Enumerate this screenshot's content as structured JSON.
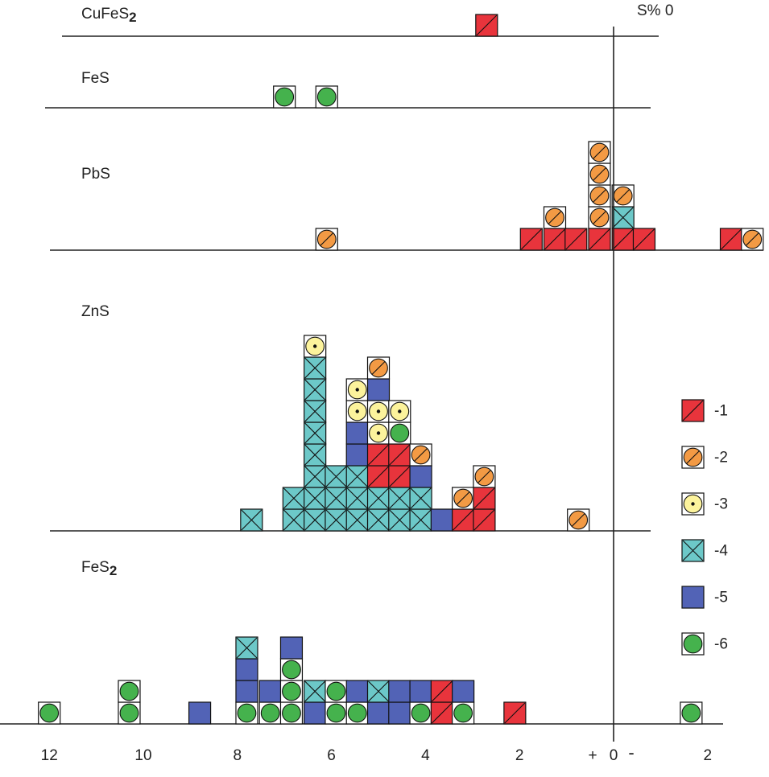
{
  "chart_data": {
    "type": "histogram-stacked",
    "x_axis": {
      "ticks": [
        {
          "value": 12,
          "label": "12"
        },
        {
          "value": 10,
          "label": "10"
        },
        {
          "value": 8,
          "label": "8"
        },
        {
          "value": 6,
          "label": "6"
        },
        {
          "value": 4,
          "label": "4"
        },
        {
          "value": 2,
          "label": "2"
        },
        {
          "value": -2,
          "label": "2"
        }
      ],
      "zero_label": "0",
      "plus_label": "+",
      "minus_label": "-",
      "axis_title": "S% 0"
    },
    "legend": [
      {
        "code": 1,
        "label": "-1",
        "symbol": "square-slash",
        "color": "#e8343c"
      },
      {
        "code": 2,
        "label": "-2",
        "symbol": "circle-slash",
        "color": "#f39a44"
      },
      {
        "code": 3,
        "label": "-3",
        "symbol": "circle-dot",
        "color": "#fcf39c"
      },
      {
        "code": 4,
        "label": "-4",
        "symbol": "square-cross",
        "color": "#6cc8c8"
      },
      {
        "code": 5,
        "label": "-5",
        "symbol": "square",
        "color": "#5263b6"
      },
      {
        "code": 6,
        "label": "-6",
        "symbol": "circle",
        "color": "#45b24d"
      }
    ],
    "panels": [
      {
        "mineral": "CuFeS",
        "subscript": "2",
        "stacks": [
          {
            "x": 2.7,
            "items": [
              1
            ]
          }
        ]
      },
      {
        "mineral": "FeS",
        "subscript": "",
        "stacks": [
          {
            "x": 7.0,
            "items": [
              6
            ]
          },
          {
            "x": 6.1,
            "items": [
              6
            ]
          }
        ]
      },
      {
        "mineral": "PbS",
        "subscript": "",
        "stacks": [
          {
            "x": 6.1,
            "items": [
              2
            ]
          },
          {
            "x": 1.75,
            "items": [
              1
            ]
          },
          {
            "x": 1.25,
            "items": [
              1,
              2
            ]
          },
          {
            "x": 0.8,
            "items": [
              1
            ]
          },
          {
            "x": 0.3,
            "items": [
              1,
              2,
              2,
              2,
              2
            ]
          },
          {
            "x": -0.2,
            "items": [
              1,
              4,
              2
            ]
          },
          {
            "x": -0.65,
            "items": [
              1
            ]
          },
          {
            "x": -2.5,
            "items": [
              1
            ]
          },
          {
            "x": -2.95,
            "items": [
              2
            ]
          }
        ]
      },
      {
        "mineral": "ZnS",
        "subscript": "",
        "stacks": [
          {
            "x": 7.7,
            "items": [
              4
            ]
          },
          {
            "x": 6.8,
            "items": [
              4,
              4
            ]
          },
          {
            "x": 6.35,
            "items": [
              4,
              4,
              4,
              4,
              4,
              4,
              4,
              4,
              3
            ]
          },
          {
            "x": 5.9,
            "items": [
              4,
              4,
              4
            ]
          },
          {
            "x": 5.45,
            "items": [
              4,
              4,
              4,
              5,
              5,
              3,
              3
            ]
          },
          {
            "x": 5.0,
            "items": [
              4,
              4,
              1,
              1,
              3,
              3,
              5,
              2
            ]
          },
          {
            "x": 4.55,
            "items": [
              4,
              4,
              1,
              1,
              6,
              3
            ]
          },
          {
            "x": 4.1,
            "items": [
              4,
              4,
              5,
              2
            ]
          },
          {
            "x": 3.65,
            "items": [
              5
            ]
          },
          {
            "x": 3.2,
            "items": [
              1,
              2
            ]
          },
          {
            "x": 2.75,
            "items": [
              1,
              1,
              2
            ]
          },
          {
            "x": 0.75,
            "items": [
              2
            ]
          }
        ]
      },
      {
        "mineral": "FeS",
        "subscript": "2",
        "stacks": [
          {
            "x": 12.0,
            "items": [
              6
            ]
          },
          {
            "x": 10.3,
            "items": [
              6,
              6
            ]
          },
          {
            "x": 8.8,
            "items": [
              5
            ]
          },
          {
            "x": 7.8,
            "items": [
              6,
              5,
              5,
              4
            ]
          },
          {
            "x": 7.3,
            "items": [
              6,
              5
            ]
          },
          {
            "x": 6.85,
            "items": [
              6,
              6,
              6,
              5
            ]
          },
          {
            "x": 6.35,
            "items": [
              5,
              4
            ]
          },
          {
            "x": 5.9,
            "items": [
              6,
              6
            ]
          },
          {
            "x": 5.45,
            "items": [
              6,
              5
            ]
          },
          {
            "x": 5.0,
            "items": [
              5,
              4
            ]
          },
          {
            "x": 4.55,
            "items": [
              5,
              5
            ]
          },
          {
            "x": 4.1,
            "items": [
              6,
              5
            ]
          },
          {
            "x": 3.65,
            "items": [
              1,
              1
            ]
          },
          {
            "x": 3.2,
            "items": [
              6,
              5
            ]
          },
          {
            "x": 2.1,
            "items": [
              1
            ]
          },
          {
            "x": -1.65,
            "items": [
              6
            ]
          }
        ]
      }
    ]
  }
}
